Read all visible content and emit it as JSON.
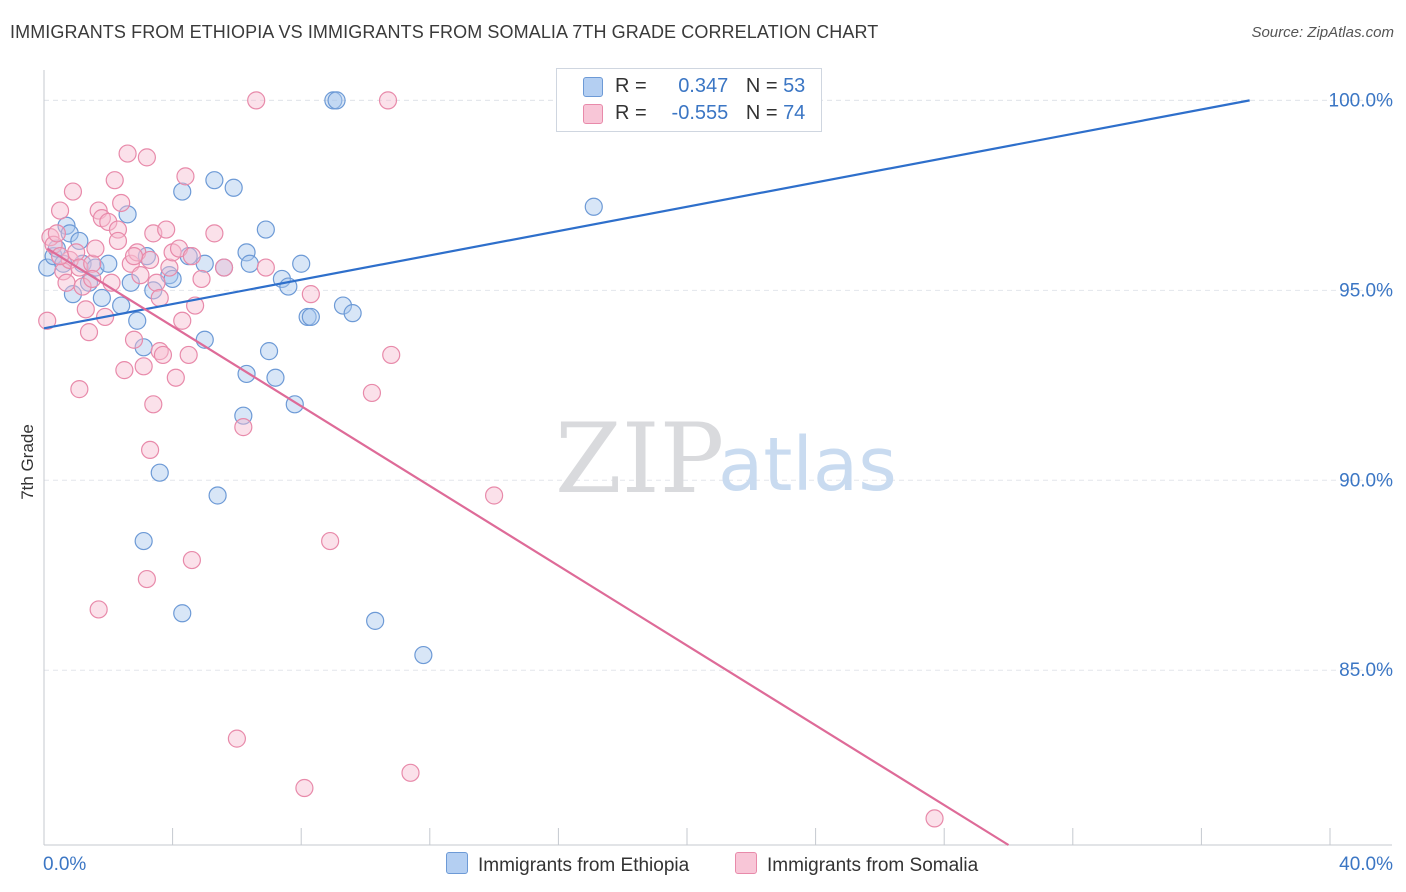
{
  "title": "IMMIGRANTS FROM ETHIOPIA VS IMMIGRANTS FROM SOMALIA 7TH GRADE CORRELATION CHART",
  "source": "Source: ZipAtlas.com",
  "watermark": {
    "zip": "ZIP",
    "atlas": "atlas"
  },
  "legend": {
    "r_label": "R =",
    "n_label": "N =",
    "series": [
      {
        "r": "0.347",
        "n": "53"
      },
      {
        "r": "-0.555",
        "n": "74"
      }
    ]
  },
  "colors": {
    "ethiopia_fill": "#a9c7ee",
    "ethiopia_stroke": "#6d9ad6",
    "ethiopia_line": "#2e6fcb",
    "somalia_fill": "#f6bcd0",
    "somalia_stroke": "#e88aaa",
    "somalia_line": "#de6b98",
    "tick_label": "#3b76c4",
    "grid": "#e3e6eb"
  },
  "chart_data": {
    "type": "scatter",
    "title": "IMMIGRANTS FROM ETHIOPIA VS IMMIGRANTS FROM SOMALIA 7TH GRADE CORRELATION CHART",
    "xlabel": "",
    "ylabel": "7th Grade",
    "xlim": [
      0,
      40
    ],
    "ylim": [
      80.4,
      100.8
    ],
    "x_tick_labels": [
      "0.0%",
      "40.0%"
    ],
    "y_ticks": [
      85,
      90,
      95,
      100
    ],
    "y_tick_labels": [
      "85.0%",
      "90.0%",
      "95.0%",
      "100.0%"
    ],
    "legend_position": "top-center",
    "series": [
      {
        "name": "Immigrants from Ethiopia",
        "r": 0.347,
        "n": 53,
        "trend": {
          "x": [
            0,
            37.5
          ],
          "y": [
            94.0,
            100.0
          ]
        },
        "points": [
          [
            0.1,
            95.6
          ],
          [
            0.3,
            95.9
          ],
          [
            0.4,
            96.1
          ],
          [
            0.6,
            95.7
          ],
          [
            0.7,
            96.7
          ],
          [
            0.8,
            96.5
          ],
          [
            0.9,
            94.9
          ],
          [
            1.1,
            96.3
          ],
          [
            1.2,
            95.7
          ],
          [
            1.4,
            95.2
          ],
          [
            1.6,
            95.6
          ],
          [
            1.8,
            94.8
          ],
          [
            2.0,
            95.7
          ],
          [
            2.4,
            94.6
          ],
          [
            2.6,
            97.0
          ],
          [
            2.7,
            95.2
          ],
          [
            2.9,
            94.2
          ],
          [
            3.1,
            93.5
          ],
          [
            3.2,
            95.9
          ],
          [
            3.4,
            95.0
          ],
          [
            3.9,
            95.4
          ],
          [
            4.0,
            95.3
          ],
          [
            4.3,
            97.6
          ],
          [
            4.5,
            95.9
          ],
          [
            5.0,
            95.7
          ],
          [
            5.0,
            93.7
          ],
          [
            5.3,
            97.9
          ],
          [
            5.6,
            95.6
          ],
          [
            5.9,
            97.7
          ],
          [
            6.3,
            96.0
          ],
          [
            6.4,
            95.7
          ],
          [
            6.3,
            92.8
          ],
          [
            6.2,
            91.7
          ],
          [
            6.9,
            96.6
          ],
          [
            7.0,
            93.4
          ],
          [
            7.2,
            92.7
          ],
          [
            7.4,
            95.3
          ],
          [
            7.6,
            95.1
          ],
          [
            7.8,
            92.0
          ],
          [
            8.0,
            95.7
          ],
          [
            8.2,
            94.3
          ],
          [
            8.3,
            94.3
          ],
          [
            9.0,
            100.0
          ],
          [
            9.1,
            100.0
          ],
          [
            9.3,
            94.6
          ],
          [
            9.6,
            94.4
          ],
          [
            10.3,
            86.3
          ],
          [
            11.8,
            85.4
          ],
          [
            3.6,
            90.2
          ],
          [
            4.3,
            86.5
          ],
          [
            5.4,
            89.6
          ],
          [
            3.1,
            88.4
          ],
          [
            17.1,
            97.2
          ]
        ]
      },
      {
        "name": "Immigrants from Somalia",
        "r": -0.555,
        "n": 74,
        "trend": {
          "x": [
            0.1,
            30.0
          ],
          "y": [
            96.1,
            80.4
          ]
        },
        "points": [
          [
            0.1,
            94.2
          ],
          [
            0.2,
            96.4
          ],
          [
            0.3,
            96.2
          ],
          [
            0.4,
            96.5
          ],
          [
            0.5,
            97.1
          ],
          [
            0.6,
            95.5
          ],
          [
            0.7,
            95.2
          ],
          [
            0.8,
            95.8
          ],
          [
            0.9,
            97.6
          ],
          [
            1.0,
            96.0
          ],
          [
            1.1,
            95.6
          ],
          [
            1.2,
            95.1
          ],
          [
            1.3,
            94.5
          ],
          [
            1.4,
            93.9
          ],
          [
            1.5,
            95.7
          ],
          [
            1.6,
            96.1
          ],
          [
            1.7,
            97.1
          ],
          [
            1.8,
            96.9
          ],
          [
            1.9,
            94.3
          ],
          [
            2.0,
            96.8
          ],
          [
            2.1,
            95.2
          ],
          [
            2.2,
            97.9
          ],
          [
            2.3,
            96.6
          ],
          [
            2.4,
            97.3
          ],
          [
            2.5,
            92.9
          ],
          [
            2.6,
            98.6
          ],
          [
            2.7,
            95.7
          ],
          [
            2.8,
            93.7
          ],
          [
            2.9,
            96.0
          ],
          [
            3.0,
            95.4
          ],
          [
            3.1,
            93.0
          ],
          [
            3.2,
            98.5
          ],
          [
            3.3,
            95.8
          ],
          [
            3.4,
            96.5
          ],
          [
            3.5,
            95.2
          ],
          [
            3.6,
            93.4
          ],
          [
            3.7,
            93.3
          ],
          [
            3.8,
            96.6
          ],
          [
            3.9,
            95.6
          ],
          [
            4.0,
            96.0
          ],
          [
            4.1,
            92.7
          ],
          [
            4.2,
            96.1
          ],
          [
            4.3,
            94.2
          ],
          [
            4.4,
            98.0
          ],
          [
            4.5,
            93.3
          ],
          [
            4.6,
            95.9
          ],
          [
            4.7,
            94.6
          ],
          [
            1.1,
            92.4
          ],
          [
            3.4,
            92.0
          ],
          [
            3.3,
            90.8
          ],
          [
            3.2,
            87.4
          ],
          [
            4.6,
            87.9
          ],
          [
            1.7,
            86.6
          ],
          [
            4.9,
            95.3
          ],
          [
            5.3,
            96.5
          ],
          [
            5.6,
            95.6
          ],
          [
            6.2,
            91.4
          ],
          [
            6.0,
            83.2
          ],
          [
            6.9,
            95.6
          ],
          [
            6.6,
            100.0
          ],
          [
            8.3,
            94.9
          ],
          [
            8.9,
            88.4
          ],
          [
            8.1,
            81.9
          ],
          [
            10.2,
            92.3
          ],
          [
            10.8,
            93.3
          ],
          [
            10.7,
            100.0
          ],
          [
            11.4,
            82.3
          ],
          [
            14.0,
            89.6
          ],
          [
            27.7,
            81.1
          ],
          [
            0.5,
            95.9
          ],
          [
            1.5,
            95.3
          ],
          [
            2.3,
            96.3
          ],
          [
            2.8,
            95.9
          ],
          [
            3.6,
            94.8
          ]
        ]
      }
    ]
  }
}
